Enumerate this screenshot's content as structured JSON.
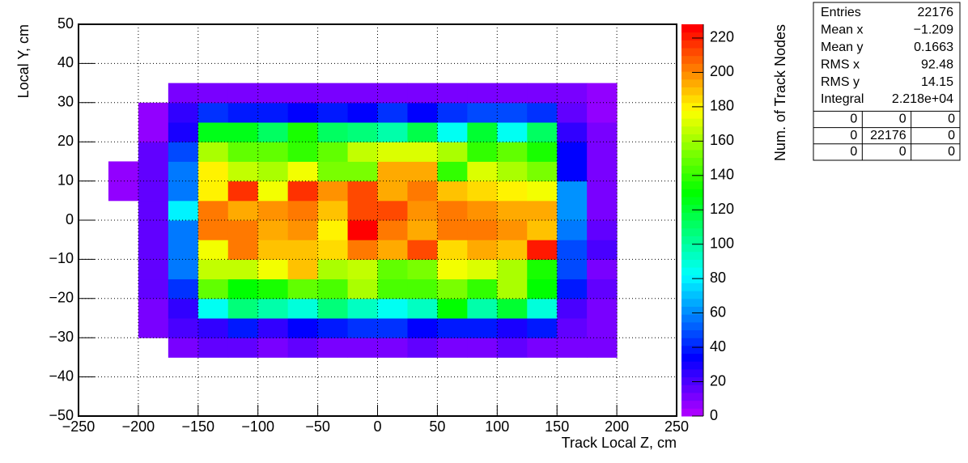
{
  "chart_data": {
    "type": "heatmap",
    "x_label": "Track Local Z, cm",
    "y_label": "Local Y, cm",
    "z_label": "Num. of Track Nodes",
    "xbins": [
      -225,
      -200,
      -175,
      -150,
      -125,
      -100,
      -75,
      -50,
      -25,
      0,
      25,
      50,
      75,
      100,
      125,
      150,
      175,
      200
    ],
    "ybins": [
      -35,
      -30,
      -25,
      -20,
      -15,
      -10,
      -5,
      0,
      5,
      10,
      15,
      20,
      25,
      30,
      35
    ],
    "z": [
      [
        null,
        null,
        10,
        15,
        15,
        12,
        15,
        12,
        12,
        12,
        14,
        12,
        12,
        14,
        12,
        12,
        10
      ],
      [
        null,
        10,
        20,
        25,
        40,
        25,
        35,
        38,
        42,
        42,
        35,
        40,
        38,
        28,
        40,
        18,
        10
      ],
      [
        null,
        12,
        25,
        85,
        105,
        100,
        90,
        105,
        95,
        85,
        95,
        130,
        100,
        120,
        90,
        20,
        10
      ],
      [
        null,
        15,
        45,
        150,
        130,
        135,
        150,
        145,
        160,
        145,
        145,
        155,
        140,
        160,
        130,
        40,
        18
      ],
      [
        null,
        15,
        55,
        165,
        165,
        175,
        190,
        160,
        165,
        150,
        155,
        175,
        170,
        160,
        135,
        50,
        12
      ],
      [
        null,
        18,
        55,
        175,
        205,
        190,
        190,
        185,
        205,
        195,
        210,
        185,
        195,
        190,
        220,
        50,
        22
      ],
      [
        null,
        18,
        55,
        205,
        205,
        195,
        200,
        180,
        225,
        205,
        195,
        205,
        205,
        200,
        190,
        55,
        15
      ],
      [
        null,
        15,
        80,
        205,
        195,
        200,
        205,
        190,
        210,
        210,
        200,
        205,
        200,
        195,
        195,
        60,
        12
      ],
      [
        8,
        15,
        55,
        180,
        215,
        175,
        215,
        200,
        210,
        195,
        205,
        190,
        185,
        180,
        175,
        60,
        12
      ],
      [
        8,
        15,
        55,
        180,
        165,
        160,
        175,
        155,
        155,
        195,
        195,
        140,
        170,
        160,
        155,
        35,
        12
      ],
      [
        null,
        15,
        48,
        160,
        150,
        150,
        140,
        150,
        165,
        170,
        170,
        160,
        140,
        150,
        135,
        35,
        12
      ],
      [
        null,
        8,
        28,
        125,
        125,
        110,
        135,
        110,
        105,
        100,
        115,
        85,
        120,
        85,
        110,
        25,
        10
      ],
      [
        null,
        8,
        25,
        45,
        40,
        40,
        35,
        38,
        35,
        42,
        33,
        42,
        48,
        48,
        42,
        18,
        8
      ],
      [
        null,
        null,
        10,
        10,
        10,
        10,
        10,
        10,
        10,
        10,
        10,
        10,
        10,
        10,
        10,
        10,
        8
      ]
    ],
    "xlim": [
      -250,
      250
    ],
    "ylim": [
      -50,
      50
    ],
    "zlim": [
      0,
      228
    ],
    "xticks": [
      {
        "value": -250,
        "label": "−250"
      },
      {
        "value": -200,
        "label": "−200"
      },
      {
        "value": -150,
        "label": "−150"
      },
      {
        "value": -100,
        "label": "−100"
      },
      {
        "value": -50,
        "label": "−50"
      },
      0,
      50,
      100,
      150,
      200,
      250
    ],
    "yticks": [
      {
        "value": -50,
        "label": "−50"
      },
      {
        "value": -40,
        "label": "−40"
      },
      {
        "value": -30,
        "label": "−30"
      },
      {
        "value": -20,
        "label": "−20"
      },
      {
        "value": -10,
        "label": "−10"
      },
      0,
      10,
      20,
      30,
      40,
      50
    ],
    "zticks": [
      0,
      20,
      40,
      60,
      80,
      100,
      120,
      140,
      160,
      180,
      200,
      220
    ],
    "grid": true,
    "palette_levels": 50,
    "stats": {
      "rows": [
        [
          "Entries",
          "22176"
        ],
        [
          "Mean x",
          "−1.209"
        ],
        [
          "Mean y",
          "0.1663"
        ],
        [
          "RMS x",
          "92.48"
        ],
        [
          "RMS y",
          "14.15"
        ],
        [
          "Integral",
          "2.218e+04"
        ]
      ],
      "overflow": [
        [
          "0",
          "0",
          "0"
        ],
        [
          "0",
          "22176",
          "0"
        ],
        [
          "0",
          "0",
          "0"
        ]
      ]
    }
  }
}
